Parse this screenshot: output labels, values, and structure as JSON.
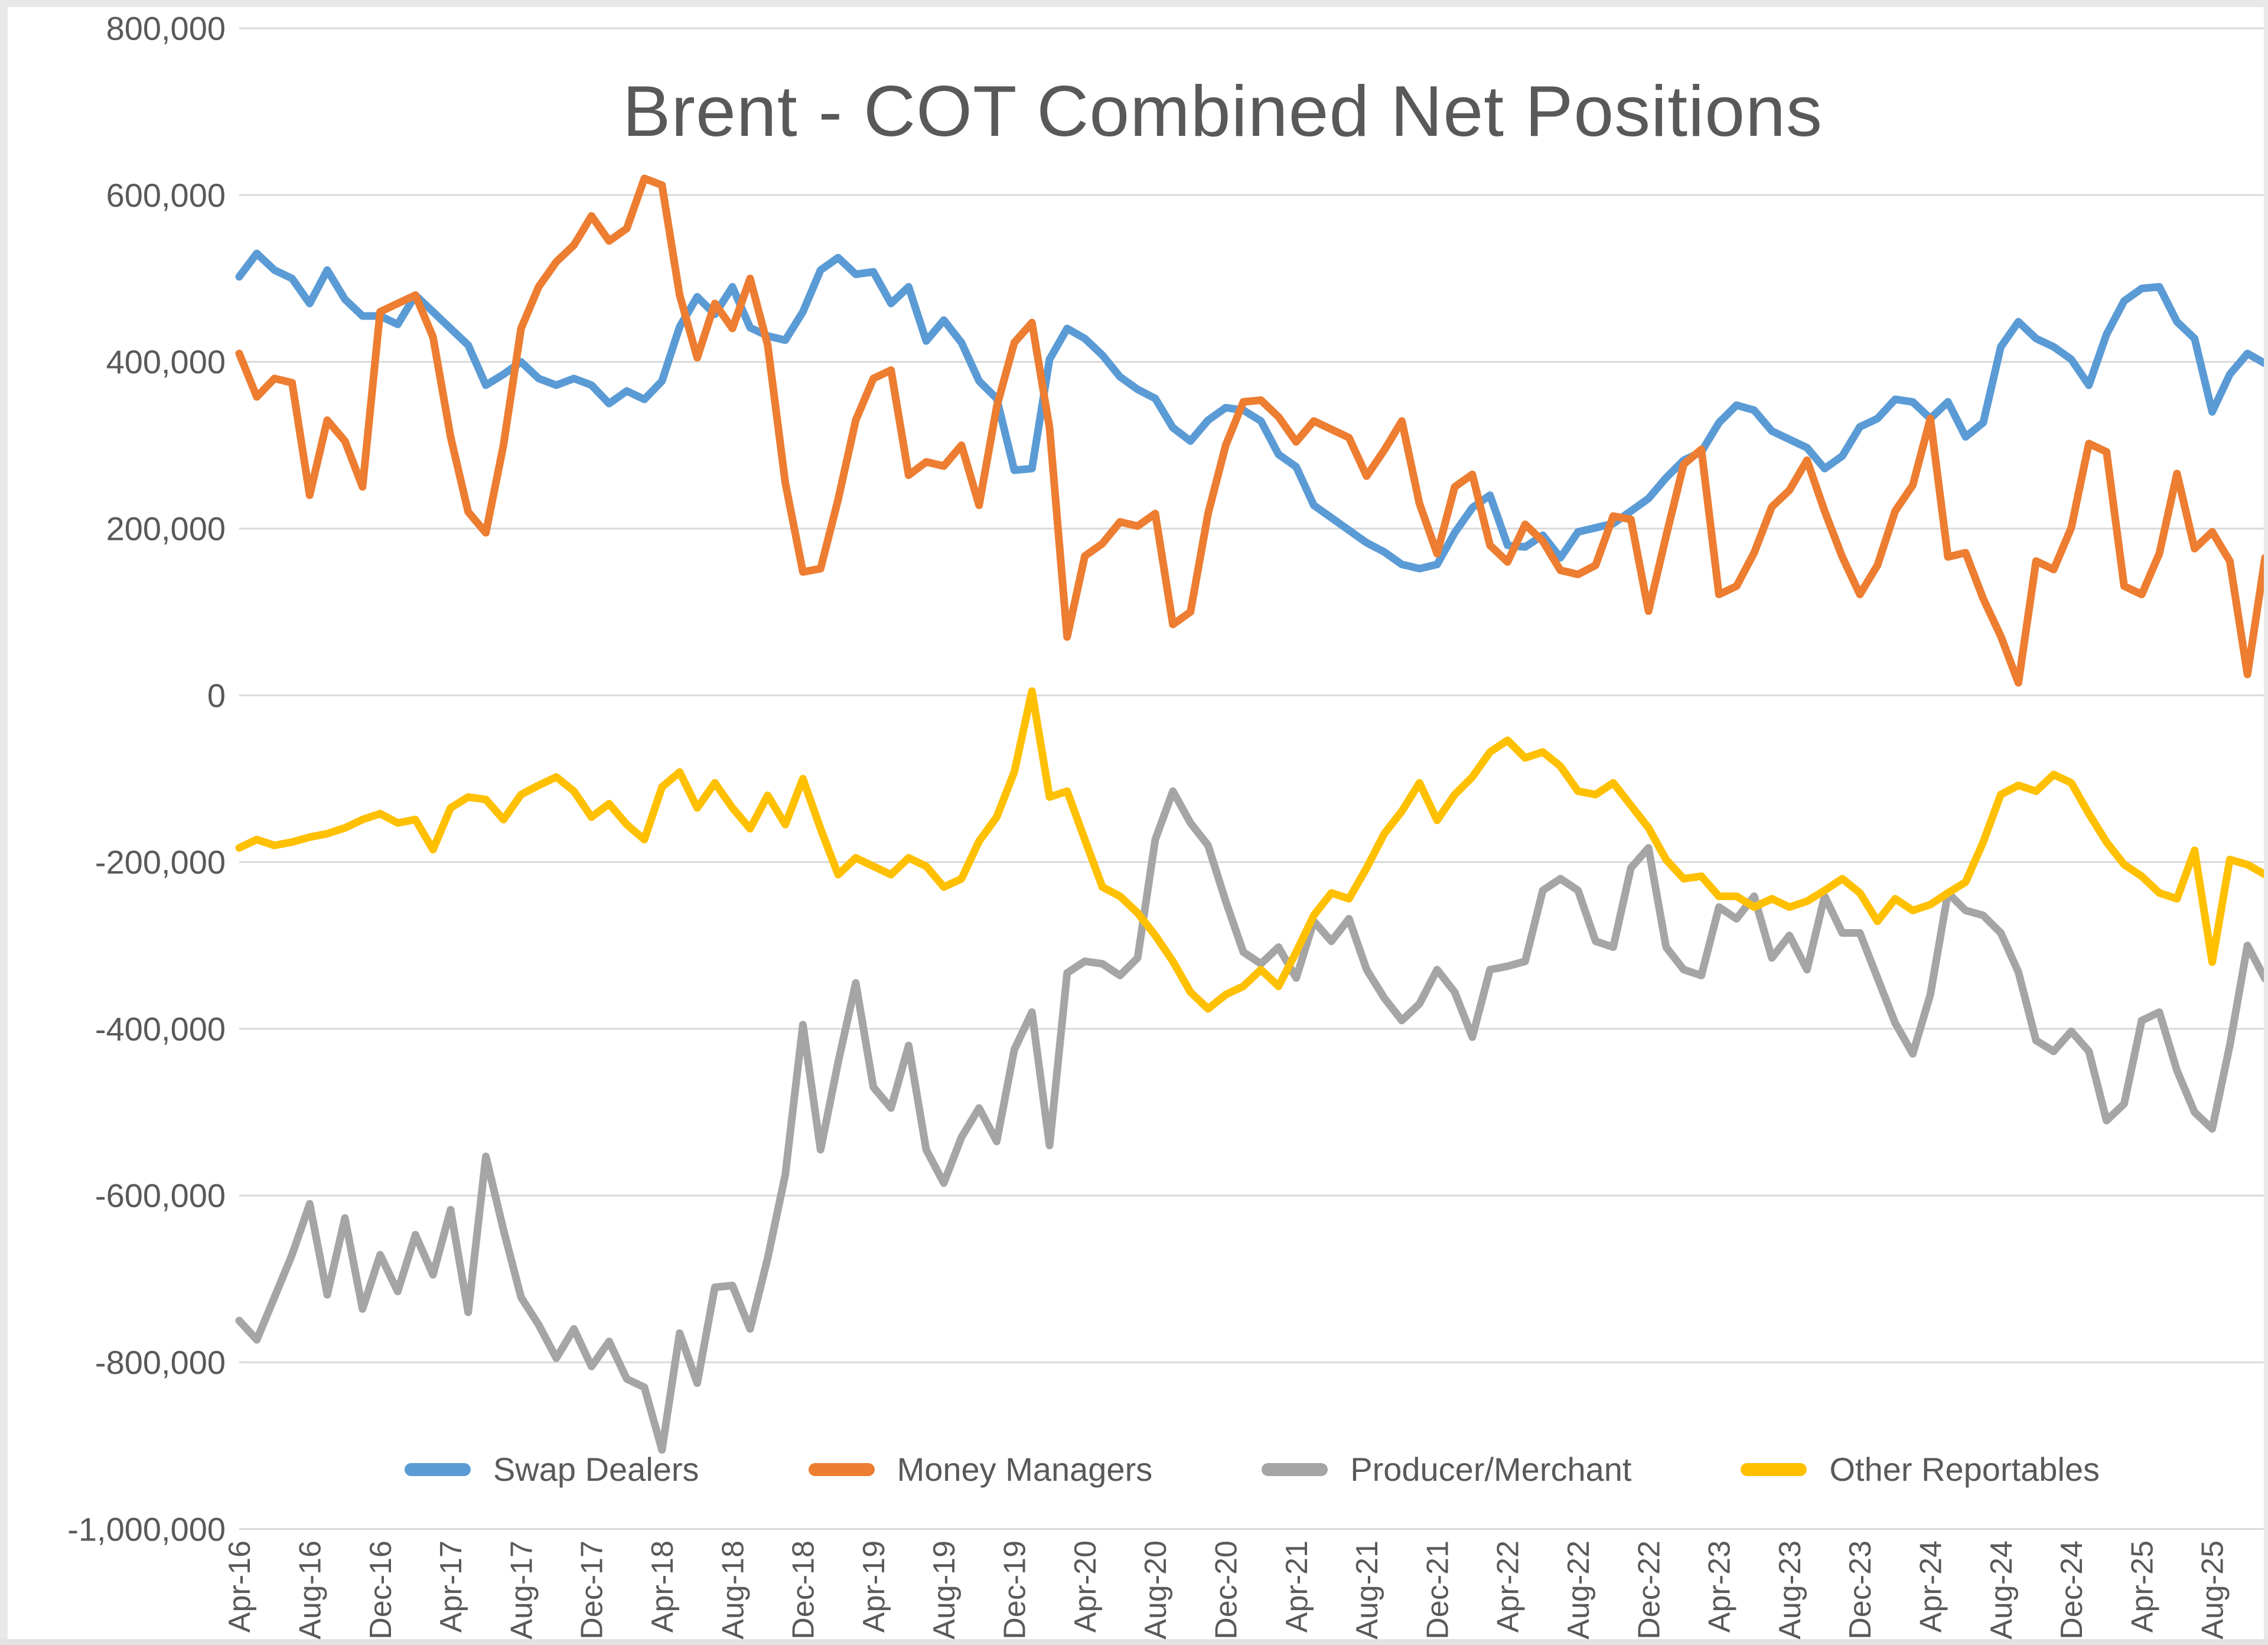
{
  "title": "Brent - COT Combined Net Positions",
  "styles": {
    "title_color": "#595959",
    "axis_label_color": "#595959",
    "gridline_color": "#D9D9D9",
    "background": "#FFFFFF",
    "frame_color": "#E8E8E8"
  },
  "chart_data": {
    "type": "line",
    "title": "Brent - COT Combined Net Positions",
    "xlabel": "",
    "ylabel": "",
    "grid": true,
    "legend_position": "bottom-inside",
    "y_axis": {
      "min": -1000000,
      "max": 800000,
      "step": 200000,
      "tick_labels": [
        "800,000",
        "600,000",
        "400,000",
        "200,000",
        "0",
        "-200,000",
        "-400,000",
        "-600,000",
        "-800,000",
        "-1,000,000"
      ]
    },
    "x_tick_labels": [
      "Apr-16",
      "Aug-16",
      "Dec-16",
      "Apr-17",
      "Aug-17",
      "Dec-17",
      "Apr-18",
      "Aug-18",
      "Dec-18",
      "Apr-19",
      "Aug-19",
      "Dec-19",
      "Apr-20",
      "Aug-20",
      "Dec-20",
      "Apr-21",
      "Aug-21",
      "Dec-21",
      "Apr-22",
      "Aug-22",
      "Dec-22",
      "Apr-23",
      "Aug-23",
      "Dec-23",
      "Apr-24",
      "Aug-24",
      "Dec-24",
      "Apr-25",
      "Aug-25"
    ],
    "x_tick_indices": [
      0,
      4,
      8,
      12,
      16,
      20,
      24,
      28,
      32,
      36,
      40,
      44,
      48,
      52,
      56,
      60,
      64,
      68,
      72,
      76,
      80,
      84,
      88,
      92,
      96,
      100,
      104,
      108,
      112
    ],
    "x_categories": [
      "Apr-16",
      "May-16",
      "Jun-16",
      "Jul-16",
      "Aug-16",
      "Sep-16",
      "Oct-16",
      "Nov-16",
      "Dec-16",
      "Jan-17",
      "Feb-17",
      "Mar-17",
      "Apr-17",
      "May-17",
      "Jun-17",
      "Jul-17",
      "Aug-17",
      "Sep-17",
      "Oct-17",
      "Nov-17",
      "Dec-17",
      "Jan-18",
      "Feb-18",
      "Mar-18",
      "Apr-18",
      "May-18",
      "Jun-18",
      "Jul-18",
      "Aug-18",
      "Sep-18",
      "Oct-18",
      "Nov-18",
      "Dec-18",
      "Jan-19",
      "Feb-19",
      "Mar-19",
      "Apr-19",
      "May-19",
      "Jun-19",
      "Jul-19",
      "Aug-19",
      "Sep-19",
      "Oct-19",
      "Nov-19",
      "Dec-19",
      "Jan-20",
      "Feb-20",
      "Mar-20",
      "Apr-20",
      "May-20",
      "Jun-20",
      "Jul-20",
      "Aug-20",
      "Sep-20",
      "Oct-20",
      "Nov-20",
      "Dec-20",
      "Jan-21",
      "Feb-21",
      "Mar-21",
      "Apr-21",
      "May-21",
      "Jun-21",
      "Jul-21",
      "Aug-21",
      "Sep-21",
      "Oct-21",
      "Nov-21",
      "Dec-21",
      "Jan-22",
      "Feb-22",
      "Mar-22",
      "Apr-22",
      "May-22",
      "Jun-22",
      "Jul-22",
      "Aug-22",
      "Sep-22",
      "Oct-22",
      "Nov-22",
      "Dec-22",
      "Jan-23",
      "Feb-23",
      "Mar-23",
      "Apr-23",
      "May-23",
      "Jun-23",
      "Jul-23",
      "Aug-23",
      "Sep-23",
      "Oct-23",
      "Nov-23",
      "Dec-23",
      "Jan-24",
      "Feb-24",
      "Mar-24",
      "Apr-24",
      "May-24",
      "Jun-24",
      "Jul-24",
      "Aug-24",
      "Sep-24",
      "Oct-24",
      "Nov-24",
      "Dec-24",
      "Jan-25",
      "Feb-25",
      "Mar-25",
      "Apr-25",
      "May-25",
      "Jun-25",
      "Jul-25",
      "Aug-25",
      "Sep-25",
      "Oct-25",
      "Nov-25"
    ],
    "values_unit_scale": 1000,
    "series": [
      {
        "name": "Swap Dealers",
        "color": "#5B9BD5",
        "values_thousands": [
          502,
          530,
          510,
          500,
          470,
          510,
          475,
          455,
          455,
          445,
          480,
          460,
          440,
          420,
          372,
          385,
          400,
          380,
          372,
          380,
          372,
          350,
          365,
          355,
          377,
          442,
          478,
          457,
          490,
          441,
          431,
          426,
          460,
          510,
          525,
          505,
          508,
          470,
          490,
          425,
          450,
          423,
          377,
          356,
          270,
          272,
          403,
          440,
          428,
          408,
          382,
          367,
          356,
          321,
          305,
          330,
          345,
          342,
          329,
          289,
          274,
          228,
          213,
          198,
          183,
          172,
          157,
          152,
          157,
          195,
          225,
          240,
          180,
          178,
          192,
          165,
          196,
          201,
          206,
          221,
          236,
          261,
          282,
          292,
          327,
          348,
          342,
          317,
          307,
          297,
          272,
          287,
          322,
          332,
          355,
          352,
          332,
          352,
          310,
          327,
          418,
          448,
          428,
          418,
          403,
          372,
          433,
          473,
          488,
          490,
          448,
          428,
          340,
          385,
          410,
          398
        ]
      },
      {
        "name": "Money Managers",
        "color": "#ED7D31",
        "values_thousands": [
          410,
          358,
          380,
          375,
          240,
          330,
          305,
          250,
          460,
          470,
          480,
          430,
          310,
          220,
          195,
          300,
          440,
          490,
          520,
          540,
          575,
          545,
          560,
          620,
          612,
          480,
          405,
          470,
          440,
          500,
          420,
          255,
          148,
          152,
          235,
          330,
          380,
          390,
          264,
          280,
          275,
          300,
          228,
          346,
          423,
          447,
          321,
          70,
          167,
          182,
          208,
          203,
          218,
          85,
          100,
          218,
          300,
          352,
          354,
          334,
          304,
          329,
          319,
          309,
          263,
          294,
          329,
          230,
          170,
          250,
          265,
          180,
          160,
          205,
          185,
          150,
          145,
          156,
          215,
          211,
          101,
          191,
          277,
          295,
          121,
          131,
          171,
          226,
          246,
          282,
          221,
          166,
          121,
          156,
          221,
          252,
          332,
          166,
          171,
          116,
          71,
          15,
          161,
          151,
          201,
          302,
          292,
          131,
          121,
          170,
          266,
          176,
          196,
          161,
          25,
          165
        ]
      },
      {
        "name": "Producer/Merchant",
        "color": "#A5A5A5",
        "values_thousands": [
          -750,
          -773,
          -722,
          -671,
          -610,
          -719,
          -627,
          -736,
          -671,
          -715,
          -647,
          -695,
          -617,
          -740,
          -553,
          -641,
          -722,
          -755,
          -795,
          -760,
          -805,
          -775,
          -820,
          -830,
          -905,
          -765,
          -825,
          -710,
          -708,
          -760,
          -675,
          -575,
          -395,
          -545,
          -440,
          -345,
          -470,
          -495,
          -420,
          -545,
          -585,
          -530,
          -495,
          -535,
          -425,
          -380,
          -540,
          -333,
          -319,
          -322,
          -336,
          -315,
          -173,
          -115,
          -153,
          -180,
          -247,
          -308,
          -322,
          -302,
          -339,
          -271,
          -295,
          -268,
          -329,
          -363,
          -390,
          -370,
          -329,
          -356,
          -410,
          -329,
          -325,
          -319,
          -234,
          -220,
          -234,
          -295,
          -302,
          -207,
          -183,
          -302,
          -329,
          -336,
          -254,
          -268,
          -241,
          -315,
          -288,
          -329,
          -241,
          -285,
          -285,
          -339,
          -393,
          -430,
          -359,
          -237,
          -258,
          -264,
          -285,
          -332,
          -414,
          -427,
          -403,
          -427,
          -510,
          -490,
          -390,
          -380,
          -450,
          -500,
          -520,
          -420,
          -300,
          -340
        ]
      },
      {
        "name": "Other Reportables",
        "color": "#FFC000",
        "values_thousands": [
          -183,
          -173,
          -180,
          -176,
          -170,
          -166,
          -159,
          -149,
          -142,
          -153,
          -149,
          -185,
          -135,
          -122,
          -125,
          -149,
          -119,
          -108,
          -98,
          -115,
          -146,
          -130,
          -155,
          -173,
          -110,
          -92,
          -135,
          -105,
          -135,
          -160,
          -120,
          -155,
          -100,
          -160,
          -215,
          -195,
          -205,
          -215,
          -195,
          -205,
          -230,
          -220,
          -175,
          -146,
          -92,
          5,
          -122,
          -115,
          -173,
          -230,
          -241,
          -261,
          -288,
          -319,
          -356,
          -376,
          -359,
          -349,
          -329,
          -349,
          -308,
          -264,
          -237,
          -244,
          -207,
          -166,
          -139,
          -105,
          -150,
          -119,
          -98,
          -68,
          -54,
          -75,
          -68,
          -85,
          -115,
          -119,
          -105,
          -132,
          -159,
          -197,
          -220,
          -217,
          -241,
          -241,
          -254,
          -244,
          -254,
          -247,
          -234,
          -220,
          -237,
          -271,
          -244,
          -258,
          -251,
          -237,
          -224,
          -176,
          -119,
          -108,
          -115,
          -95,
          -105,
          -142,
          -176,
          -203,
          -217,
          -237,
          -244,
          -186,
          -320,
          -197,
          -203,
          -215
        ]
      }
    ]
  }
}
